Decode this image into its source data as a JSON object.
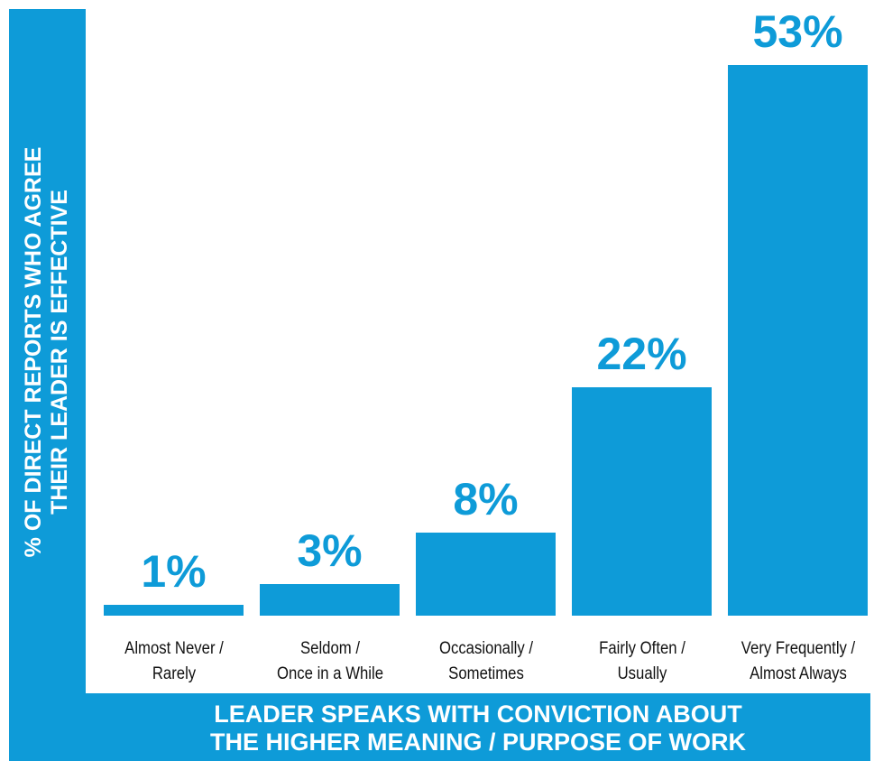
{
  "chart_data": {
    "type": "bar",
    "x_label": "LEADER SPEAKS WITH CONVICTION ABOUT\nTHE HIGHER MEANING / PURPOSE OF WORK",
    "y_label": "% OF DIRECT REPORTS WHO AGREE\nTHEIR LEADER IS EFFECTIVE",
    "categories": [
      "Almost Never /\nRarely",
      "Seldom /\nOnce in a While",
      "Occasionally /\nSometimes",
      "Fairly Often /\nUsually",
      "Very Frequently /\nAlmost Always"
    ],
    "values": [
      1,
      3,
      8,
      22,
      53
    ],
    "value_labels": [
      "1%",
      "3%",
      "8%",
      "22%",
      "53%"
    ],
    "color": "#0e9bd8"
  }
}
